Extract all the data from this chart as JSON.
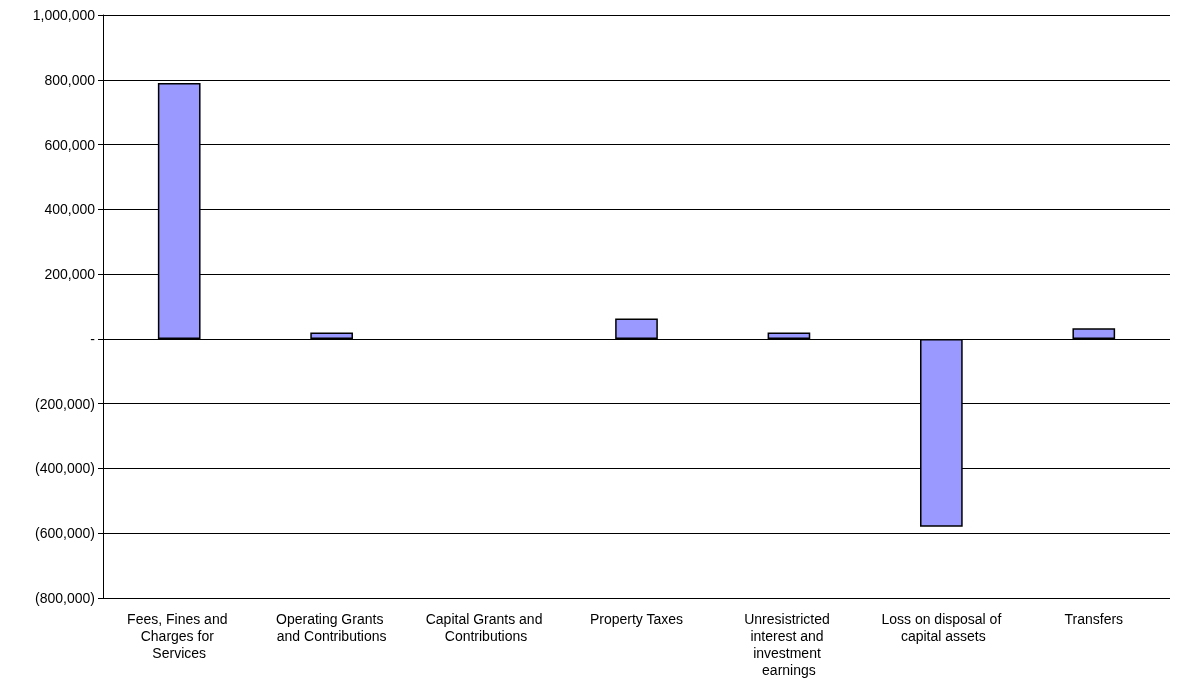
{
  "chart_data": {
    "type": "bar",
    "categories": [
      "Fees, Fines and Charges for Services",
      "Operating Grants and Contributions",
      "Capital Grants and Contributions",
      "Property Taxes",
      "Unresistricted interest and investment earnings",
      "Loss on disposal of capital assets",
      "Transfers"
    ],
    "values": [
      790000,
      20000,
      0,
      63000,
      20000,
      -580000,
      33000
    ],
    "color": "#9999ff",
    "ylim": [
      -800000,
      1000000
    ],
    "yticks": [
      {
        "value": -800000,
        "label": "(800,000)"
      },
      {
        "value": -600000,
        "label": "(600,000)"
      },
      {
        "value": -400000,
        "label": "(400,000)"
      },
      {
        "value": -200000,
        "label": "(200,000)"
      },
      {
        "value": 0,
        "label": "-"
      },
      {
        "value": 200000,
        "label": "200,000"
      },
      {
        "value": 400000,
        "label": "400,000"
      },
      {
        "value": 600000,
        "label": "600,000"
      },
      {
        "value": 800000,
        "label": "800,000"
      },
      {
        "value": 1000000,
        "label": "1,000,000"
      }
    ],
    "grid": "y"
  }
}
